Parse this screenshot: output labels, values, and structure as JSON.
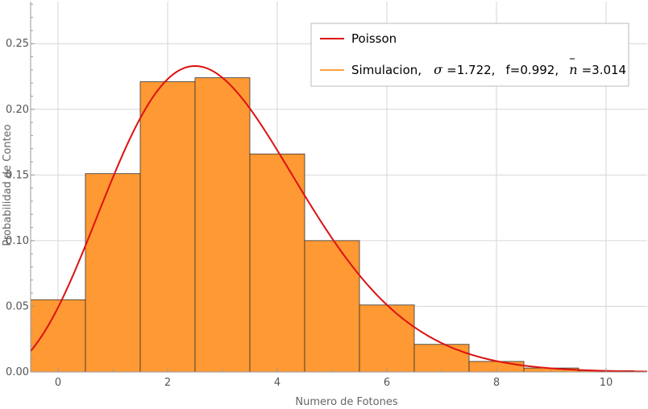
{
  "chart_data": {
    "type": "bar",
    "xlabel": "Numero de Fotones",
    "ylabel": "Probabilidad de Conteo",
    "xlim": [
      -0.5,
      10.75
    ],
    "ylim": [
      0,
      0.282
    ],
    "grid": true,
    "legend_position": "top-right",
    "x_ticks": [
      0,
      2,
      4,
      6,
      8,
      10
    ],
    "x_tick_labels": [
      "0",
      "2",
      "4",
      "6",
      "8",
      "10"
    ],
    "y_ticks": [
      0.0,
      0.05,
      0.1,
      0.15,
      0.2,
      0.25
    ],
    "y_tick_labels": [
      "0.00",
      "0.05",
      "0.10",
      "0.15",
      "0.20",
      "0.25"
    ],
    "histogram": {
      "name": "Simulacion",
      "color": "#FF9933",
      "edge_color": "#333333",
      "bin_width": 1,
      "centers": [
        0,
        1,
        2,
        3,
        4,
        5,
        6,
        7,
        8,
        9,
        10
      ],
      "values": [
        0.055,
        0.151,
        0.221,
        0.224,
        0.166,
        0.1,
        0.051,
        0.021,
        0.008,
        0.003,
        0.001
      ]
    },
    "curve": {
      "name": "Poisson",
      "color": "#DD1111",
      "mean": 3.014
    },
    "legend": {
      "entries": [
        {
          "label": "Poisson",
          "color": "#DD1111"
        },
        {
          "label_prefix": "Simulacion,",
          "sigma_symbol": "σ",
          "sigma_value": "=1.722,",
          "f_text": "f=0.992,",
          "nbar_symbol": "n",
          "nbar_value": "=3.014",
          "color": "#FFA040"
        }
      ]
    }
  },
  "colors": {
    "grid": "#d6d6d6",
    "axis": "#999999"
  }
}
